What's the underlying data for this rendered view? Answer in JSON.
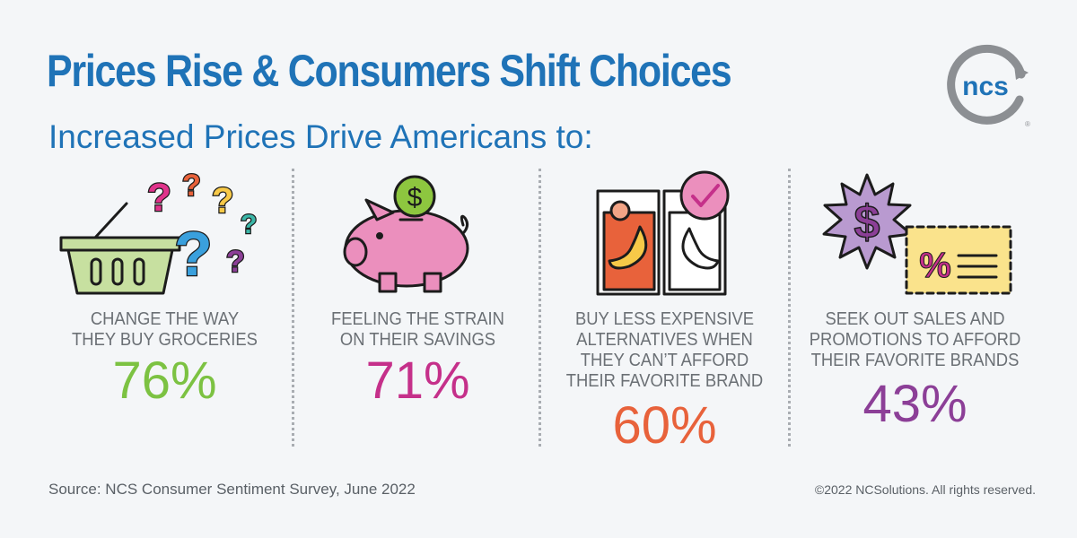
{
  "header": {
    "title": "Prices Rise & Consumers Shift Choices",
    "subtitle": "Increased Prices Drive Americans to:"
  },
  "logo": {
    "text": "ncs",
    "icon": "ncs-logo-icon",
    "color": "#1f73b7",
    "ring_color": "#8c8f93"
  },
  "stats": [
    {
      "label": "CHANGE THE WAY THEY BUY GROCERIES",
      "lines": [
        "CHANGE THE WAY",
        "THEY BUY GROCERIES"
      ],
      "percent": "76%",
      "color": "#7cc242",
      "icon": "grocery-basket-question-marks-icon"
    },
    {
      "label": "FEELING THE STRAIN ON THEIR SAVINGS",
      "lines": [
        "FEELING THE STRAIN",
        "ON THEIR SAVINGS"
      ],
      "percent": "71%",
      "color": "#c5308a",
      "icon": "piggy-bank-icon"
    },
    {
      "label": "BUY LESS EXPENSIVE ALTERNATIVES WHEN THEY CAN'T AFFORD THEIR FAVORITE BRAND",
      "lines": [
        "BUY LESS EXPENSIVE",
        "ALTERNATIVES WHEN",
        "THEY CAN’T AFFORD",
        "THEIR FAVORITE BRAND"
      ],
      "percent": "60%",
      "color": "#e8623b",
      "icon": "product-boxes-checkmark-icon"
    },
    {
      "label": "SEEK OUT SALES AND PROMOTIONS TO AFFORD THEIR FAVORITE BRANDS",
      "lines": [
        "SEEK OUT SALES AND",
        "PROMOTIONS TO AFFORD",
        "THEIR FAVORITE BRANDS"
      ],
      "percent": "43%",
      "color": "#8c3f97",
      "icon": "dollar-badge-coupon-icon"
    }
  ],
  "footer": {
    "source": "Source: NCS Consumer Sentiment Survey, June 2022",
    "copyright": "©2022 NCSolutions. All rights reserved."
  }
}
